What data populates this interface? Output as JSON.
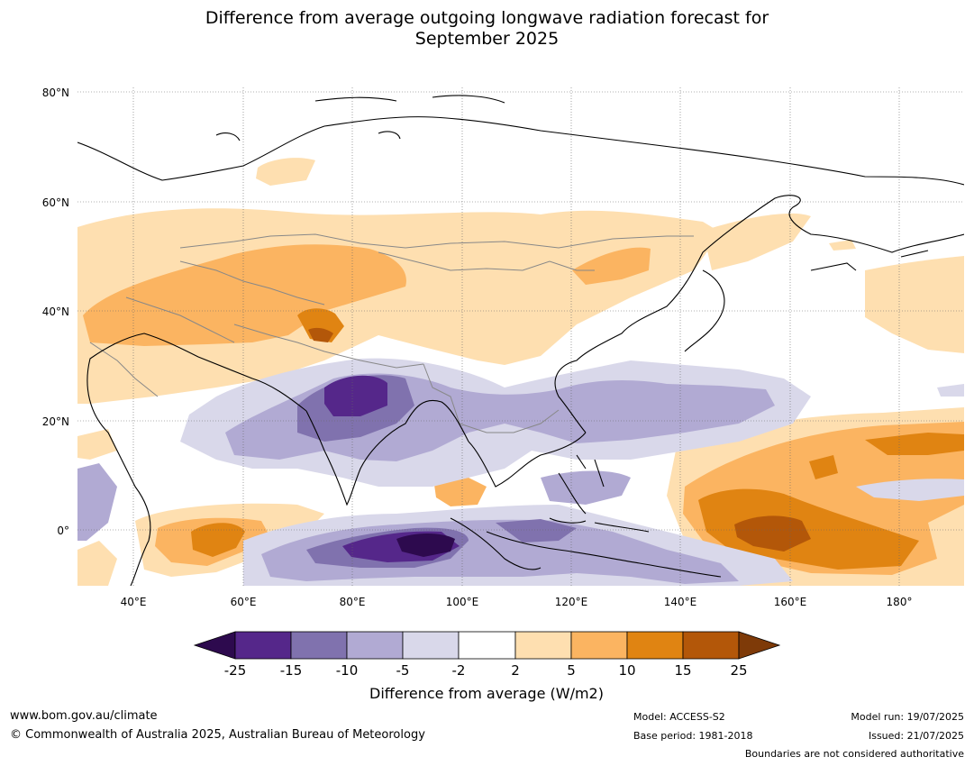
{
  "title": {
    "line1": "Difference from average outgoing longwave radiation forecast for",
    "line2": "September 2025"
  },
  "map": {
    "lon_range": [
      30,
      192
    ],
    "lat_range": [
      -10,
      81
    ],
    "lat_labels": [
      "80°N",
      "60°N",
      "40°N",
      "20°N",
      "0°"
    ],
    "lon_labels": [
      "40°E",
      "60°E",
      "80°E",
      "100°E",
      "120°E",
      "140°E",
      "160°E",
      "180°"
    ]
  },
  "colorbar": {
    "ticks": [
      "-25",
      "-15",
      "-10",
      "-5",
      "-2",
      "2",
      "5",
      "10",
      "15",
      "25"
    ],
    "colors": {
      "below": "#2d0a4e",
      "bins": [
        "#55278a",
        "#8072ae",
        "#b1aad3",
        "#d9d8ea",
        "#ffffff",
        "#fedfb0",
        "#fbb461",
        "#e08412",
        "#b35709"
      ],
      "above": "#7e3a08"
    },
    "label": "Difference from average (W/m2)"
  },
  "footer": {
    "website": "www.bom.gov.au/climate",
    "copyright": "© Commonwealth of Australia 2025, Australian Bureau of Meteorology",
    "model": "Model: ACCESS-S2",
    "base_period": "Base period: 1981-2018",
    "model_run": "Model run: 19/07/2025",
    "issued": "Issued: 21/07/2025",
    "disclaimer": "Boundaries are not considered authoritative"
  }
}
